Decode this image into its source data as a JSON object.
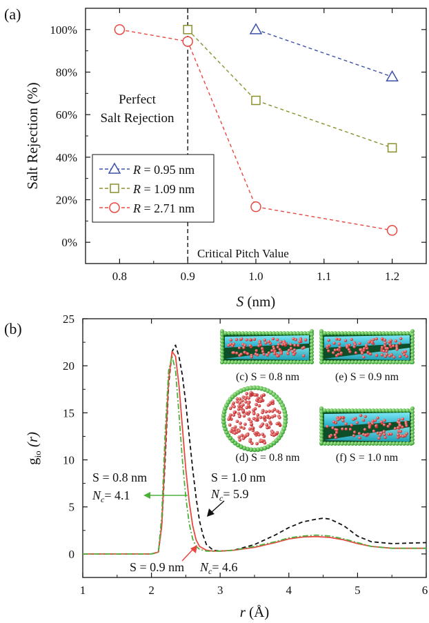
{
  "chart_data": [
    {
      "panel_label": "(a)",
      "type": "line",
      "xlabel_var": "S",
      "xlabel_unit": " (nm)",
      "ylabel": "Salt Rejection (%)",
      "xlim": [
        0.75,
        1.25
      ],
      "ylim": [
        -10,
        110
      ],
      "xticks": [
        "0.8",
        "0.9",
        "1.0",
        "1.1",
        "1.2"
      ],
      "xtick_values": [
        0.8,
        0.9,
        1.0,
        1.1,
        1.2
      ],
      "yticks": [
        "0%",
        "20%",
        "40%",
        "60%",
        "80%",
        "100%"
      ],
      "ytick_values": [
        0,
        20,
        40,
        60,
        80,
        100
      ],
      "grid": false,
      "legend_placement": "lower-left",
      "series": [
        {
          "label_prefix": "R",
          "label_value": " = 0.95 nm",
          "color": "#3a4fa8",
          "marker": "triangle",
          "x": [
            1.0,
            1.2
          ],
          "y": [
            100,
            77.8
          ]
        },
        {
          "label_prefix": "R",
          "label_value": " = 1.09 nm",
          "color": "#8a8f2a",
          "marker": "square",
          "x": [
            0.9,
            1.0,
            1.2
          ],
          "y": [
            100,
            66.7,
            44.4
          ]
        },
        {
          "label_prefix": "R",
          "label_value": " = 2.71 nm",
          "color": "#e8473f",
          "marker": "circle",
          "x": [
            0.8,
            0.9,
            1.0,
            1.2
          ],
          "y": [
            100,
            94.4,
            16.7,
            5.6
          ]
        }
      ],
      "vline": {
        "x": 0.9,
        "label": "Critical Pitch Value"
      },
      "annotation_lines": [
        "Perfect",
        "Salt Rejection"
      ]
    },
    {
      "panel_label": "(b)",
      "type": "line",
      "xlabel_var": "r",
      "xlabel_unit": " (Å)",
      "ylabel_main": "g",
      "ylabel_sub": "io",
      "ylabel_rest": " (r)",
      "xlim": [
        1,
        6
      ],
      "ylim": [
        -2.5,
        25
      ],
      "xticks": [
        "1",
        "2",
        "3",
        "4",
        "5",
        "6"
      ],
      "xtick_values": [
        1,
        2,
        3,
        4,
        5,
        6
      ],
      "yticks": [
        "0",
        "5",
        "10",
        "15",
        "20",
        "25"
      ],
      "ytick_values": [
        0,
        5,
        10,
        15,
        20,
        25
      ],
      "grid": false,
      "series": [
        {
          "name": "S = 1.0 nm",
          "color": "#111111",
          "dash": "6,4",
          "x": [
            1.0,
            2.0,
            2.1,
            2.15,
            2.2,
            2.25,
            2.3,
            2.35,
            2.4,
            2.45,
            2.5,
            2.55,
            2.6,
            2.65,
            2.7,
            2.75,
            2.8,
            2.9,
            3.0,
            3.2,
            3.5,
            3.8,
            4.0,
            4.2,
            4.4,
            4.5,
            4.6,
            4.8,
            5.0,
            5.2,
            5.5,
            6.0
          ],
          "y": [
            0,
            0,
            0.2,
            3.0,
            10.0,
            18.0,
            21.5,
            22.2,
            21.0,
            19.0,
            16.0,
            12.5,
            9.0,
            6.0,
            3.5,
            2.0,
            1.0,
            0.4,
            0.3,
            0.4,
            1.0,
            2.0,
            2.8,
            3.4,
            3.7,
            3.8,
            3.7,
            3.0,
            1.9,
            1.3,
            1.1,
            1.2
          ]
        },
        {
          "name": "S = 0.9 nm",
          "color": "#e8473f",
          "dash": "",
          "x": [
            1.0,
            2.0,
            2.1,
            2.15,
            2.2,
            2.25,
            2.3,
            2.35,
            2.4,
            2.45,
            2.5,
            2.55,
            2.6,
            2.65,
            2.7,
            2.8,
            2.9,
            3.0,
            3.2,
            3.5,
            3.8,
            4.0,
            4.2,
            4.4,
            4.5,
            4.6,
            4.8,
            5.0,
            5.2,
            5.5,
            6.0
          ],
          "y": [
            0,
            0,
            0.2,
            3.0,
            11.0,
            18.5,
            21.5,
            21.0,
            18.0,
            13.5,
            9.0,
            5.5,
            3.0,
            1.5,
            0.8,
            0.4,
            0.3,
            0.3,
            0.4,
            0.7,
            1.2,
            1.6,
            1.8,
            1.85,
            1.8,
            1.75,
            1.5,
            1.1,
            0.8,
            0.6,
            0.6
          ]
        },
        {
          "name": "S = 0.8 nm",
          "color": "#4caf3a",
          "dash": "8,3,2,3",
          "x": [
            1.0,
            2.0,
            2.1,
            2.15,
            2.2,
            2.25,
            2.3,
            2.35,
            2.4,
            2.45,
            2.5,
            2.55,
            2.6,
            2.65,
            2.7,
            2.8,
            2.9,
            3.0,
            3.2,
            3.5,
            3.8,
            4.0,
            4.2,
            4.4,
            4.5,
            4.6,
            4.8,
            5.0,
            5.2,
            5.5,
            6.0
          ],
          "y": [
            0,
            0,
            0.2,
            4.0,
            13.0,
            19.5,
            21.0,
            19.5,
            15.0,
            10.0,
            6.0,
            3.2,
            1.6,
            0.8,
            0.5,
            0.3,
            0.3,
            0.3,
            0.4,
            0.8,
            1.3,
            1.7,
            1.9,
            2.0,
            1.95,
            1.9,
            1.6,
            1.2,
            0.8,
            0.6,
            0.6
          ]
        }
      ],
      "annotations": {
        "green_S": "S = 0.8 nm",
        "green_Nc": "= 4.1",
        "black_S": "S = 1.0 nm",
        "black_Nc": "= 5.9",
        "red_S": "S = 0.9 nm",
        "red_Nc": "= 4.6",
        "nc_main": "N",
        "nc_sub": "c"
      },
      "inset_captions": {
        "c": "(c) S = 0.8 nm",
        "e": "(e) S = 0.9 nm",
        "d": "(d) S = 0.8 nm",
        "f": "(f) S = 1.0 nm"
      }
    }
  ]
}
